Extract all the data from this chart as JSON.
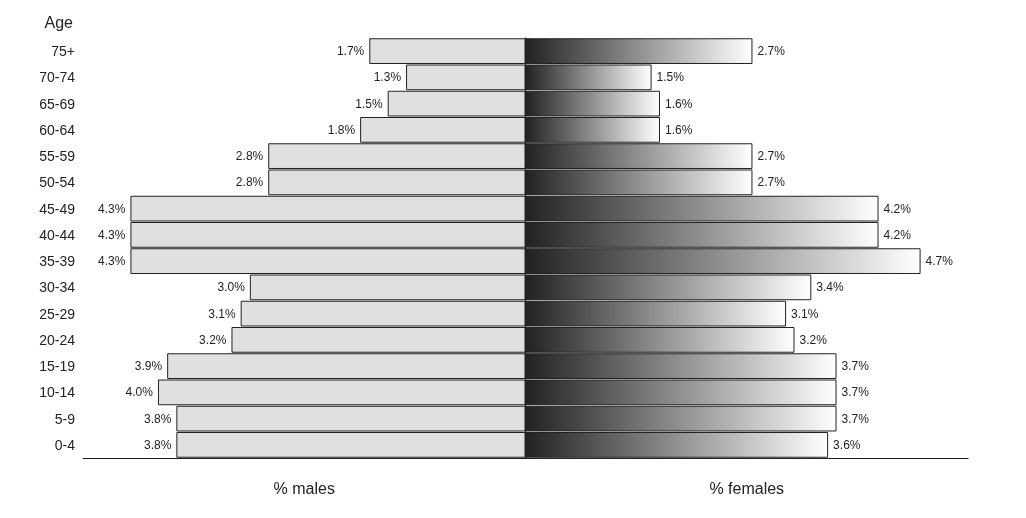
{
  "chart_data": [
    {
      "type": "bar",
      "orientation": "horizontal",
      "ylabel": "Age",
      "xlabel": "% males",
      "tick_labels": "y",
      "color": "#e0e0e0",
      "categories": [
        "75+",
        "70-74",
        "65-69",
        "60-64",
        "55-59",
        "50-54",
        "45-49",
        "40-44",
        "35-39",
        "30-34",
        "25-29",
        "20-24",
        "15-19",
        "10-14",
        "5-9",
        "0-4"
      ],
      "values": [
        1.7,
        1.3,
        1.5,
        1.8,
        2.8,
        2.8,
        4.3,
        4.3,
        4.3,
        3.0,
        3.1,
        3.2,
        3.9,
        4.0,
        3.8,
        3.8
      ],
      "value_labels": [
        "1.7%",
        "1.3%",
        "1.5%",
        "1.8%",
        "2.8%",
        "2.8%",
        "4.3%",
        "4.3%",
        "4.3%",
        "3.0%",
        "3.1%",
        "3.2%",
        "3.9%",
        "4.0%",
        "3.8%",
        "3.8%"
      ]
    },
    {
      "type": "bar",
      "orientation": "horizontal",
      "xlabel": "% females",
      "tick_labels": false,
      "color": "#222222",
      "categories": [
        null,
        null,
        null,
        null,
        null,
        null,
        null,
        null,
        null,
        null,
        null,
        null,
        null,
        null,
        null,
        null
      ],
      "values": [
        2.7,
        1.5,
        1.6,
        1.6,
        2.7,
        2.7,
        4.2,
        4.2,
        4.7,
        3.4,
        3.1,
        3.2,
        3.7,
        3.7,
        3.7,
        3.6
      ],
      "value_labels": [
        "2.7%",
        "1.5%",
        "1.6%",
        "1.6%",
        "2.7%",
        "2.7%",
        "4.2%",
        "4.2%",
        "4.7%",
        "3.4%",
        "3.1%",
        "3.2%",
        "3.7%",
        "3.7%",
        "3.7%",
        "3.6%"
      ]
    }
  ]
}
